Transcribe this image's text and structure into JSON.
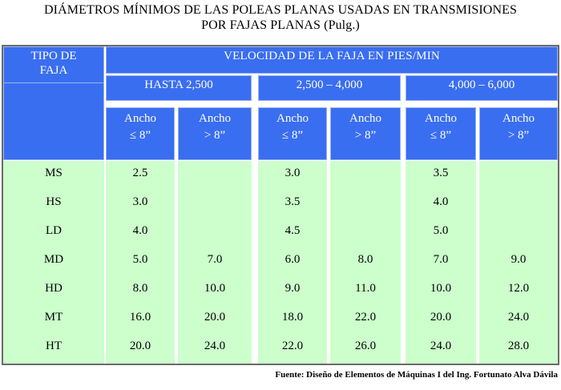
{
  "title": {
    "line1": "DIÁMETROS MÍNIMOS DE LAS POLEAS PLANAS USADAS EN TRANSMISIONES",
    "line2": "POR FAJAS PLANAS (Pulg.)"
  },
  "table": {
    "col0_header": [
      "TIPO DE",
      "FAJA"
    ],
    "velocity_header": "VELOCIDAD DE LA FAJA EN PIES/MIN",
    "ranges": [
      "HASTA 2,500",
      "2,500 – 4,000",
      "4,000 – 6,000"
    ],
    "subheaders": [
      [
        "Ancho",
        "≤ 8”"
      ],
      [
        "Ancho",
        "> 8”"
      ],
      [
        "Ancho",
        "≤ 8”"
      ],
      [
        "Ancho",
        "> 8”"
      ],
      [
        "Ancho",
        "≤ 8”"
      ],
      [
        "Ancho",
        "> 8”"
      ]
    ],
    "rows": [
      {
        "type": "MS",
        "values": [
          "2.5",
          "",
          "3.0",
          "",
          "3.5",
          ""
        ]
      },
      {
        "type": "HS",
        "values": [
          "3.0",
          "",
          "3.5",
          "",
          "4.0",
          ""
        ]
      },
      {
        "type": "LD",
        "values": [
          "4.0",
          "",
          "4.5",
          "",
          "5.0",
          ""
        ]
      },
      {
        "type": "MD",
        "values": [
          "5.0",
          "7.0",
          "6.0",
          "8.0",
          "7.0",
          "9.0"
        ]
      },
      {
        "type": "HD",
        "values": [
          "8.0",
          "10.0",
          "9.0",
          "11.0",
          "10.0",
          "12.0"
        ]
      },
      {
        "type": "MT",
        "values": [
          "16.0",
          "20.0",
          "18.0",
          "22.0",
          "20.0",
          "24.0"
        ]
      },
      {
        "type": "HT",
        "values": [
          "20.0",
          "24.0",
          "22.0",
          "26.0",
          "24.0",
          "28.0"
        ]
      }
    ]
  },
  "source": "Fuente: Diseño de Elementos de Máquinas I del Ing. Fortunato Alva Dávila"
}
